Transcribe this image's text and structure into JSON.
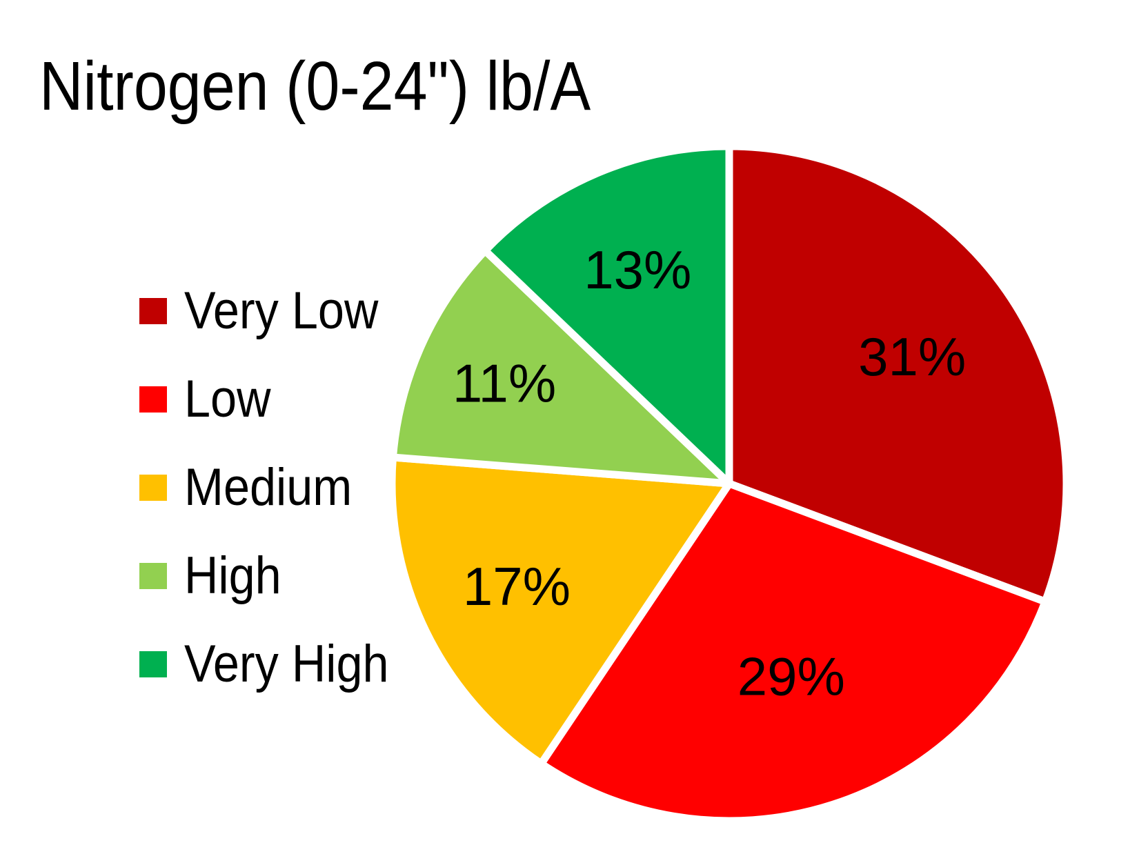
{
  "chart_data": {
    "type": "pie",
    "title": "Nitrogen (0-24\") lb/A",
    "categories": [
      "Very Low",
      "Low",
      "Medium",
      "High",
      "Very High"
    ],
    "values": [
      31,
      29,
      17,
      11,
      13
    ],
    "labels": [
      "31%",
      "29%",
      "17%",
      "11%",
      "13%"
    ],
    "label_format": "percent",
    "colors": [
      "#C00000",
      "#FF0000",
      "#FFC000",
      "#92D050",
      "#00B050"
    ],
    "label_color": "#000000",
    "separator_color": "#FFFFFF",
    "background_color": "#FFFFFF",
    "start_angle_deg": 0,
    "direction": "clockwise",
    "legend_position": "left",
    "label_radius_fractions": [
      0.66,
      0.6,
      0.7,
      0.73,
      0.69
    ]
  }
}
